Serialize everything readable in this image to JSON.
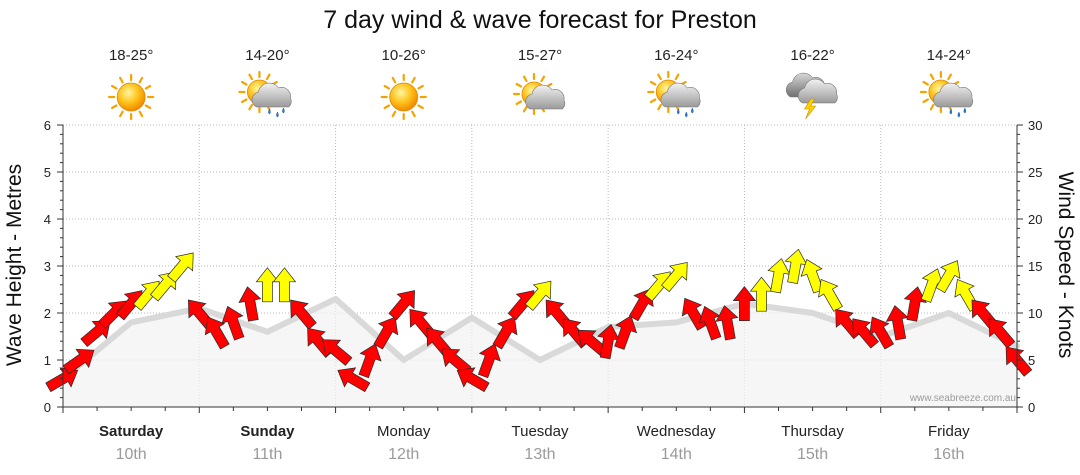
{
  "chart_data": {
    "type": "line",
    "title": "7 day wind & wave forecast for Preston",
    "ylabel_left": "Wave Height - Metres",
    "ylabel_right": "Wind Speed - Knots",
    "ylim_left": [
      0,
      6
    ],
    "ylim_right": [
      0,
      30
    ],
    "yticks_left": [
      "0",
      "1",
      "2",
      "3",
      "4",
      "5",
      "6"
    ],
    "yticks_right": [
      "0",
      "5",
      "10",
      "15",
      "20",
      "25",
      "30"
    ],
    "grid": true,
    "days": [
      {
        "day": "Saturday",
        "date": "10th",
        "temp": "18-25°",
        "icon": "sunny-icon",
        "bold": true
      },
      {
        "day": "Sunday",
        "date": "11th",
        "temp": "14-20°",
        "icon": "partly-cloudy-showers-icon",
        "bold": true
      },
      {
        "day": "Monday",
        "date": "12th",
        "temp": "10-26°",
        "icon": "sunny-icon",
        "bold": false
      },
      {
        "day": "Tuesday",
        "date": "13th",
        "temp": "15-27°",
        "icon": "partly-cloudy-icon",
        "bold": false
      },
      {
        "day": "Wednesday",
        "date": "14th",
        "temp": "16-24°",
        "icon": "partly-cloudy-showers-icon",
        "bold": false
      },
      {
        "day": "Thursday",
        "date": "15th",
        "temp": "16-22°",
        "icon": "storm-icon",
        "bold": false
      },
      {
        "day": "Friday",
        "date": "16th",
        "temp": "14-24°",
        "icon": "partly-cloudy-showers-icon",
        "bold": false
      }
    ],
    "series": [
      {
        "name": "wave",
        "color": "#d9d9d9",
        "x": [
          0,
          0.5,
          1,
          1.5,
          2,
          2.5,
          3,
          3.5,
          4,
          4.5,
          5,
          5.5,
          6,
          6.5,
          7
        ],
        "values": [
          0.6,
          1.8,
          2.1,
          1.6,
          2.3,
          1.0,
          1.9,
          1.0,
          1.7,
          1.8,
          2.2,
          2.0,
          1.5,
          2.0,
          1.3
        ]
      },
      {
        "name": "wind",
        "color_strong": "#ffff00",
        "color_weak": "#ff0000",
        "x": [
          0.0,
          0.125,
          0.25,
          0.375,
          0.5,
          0.625,
          0.75,
          0.875,
          1.0,
          1.125,
          1.25,
          1.375,
          1.5,
          1.625,
          1.75,
          1.875,
          2.0,
          2.125,
          2.25,
          2.375,
          2.5,
          2.625,
          2.75,
          2.875,
          3.0,
          3.125,
          3.25,
          3.375,
          3.5,
          3.625,
          3.75,
          3.875,
          4.0,
          4.125,
          4.25,
          4.375,
          4.5,
          4.625,
          4.75,
          4.875,
          5.0,
          5.125,
          5.25,
          5.375,
          5.5,
          5.625,
          5.75,
          5.875,
          6.0,
          6.125,
          6.25,
          6.375,
          6.5,
          6.625,
          6.75,
          6.875,
          7.0
        ],
        "values": [
          3,
          5,
          8,
          10,
          11,
          12,
          13,
          15,
          10,
          8,
          9,
          11,
          13,
          13,
          10,
          7,
          6,
          3,
          5,
          8,
          11,
          9,
          7,
          5,
          3,
          5,
          8,
          11,
          12,
          10,
          8,
          7,
          7,
          8,
          11,
          13,
          14,
          10,
          9,
          9,
          11,
          12,
          14,
          15,
          14,
          12,
          9,
          8,
          8,
          9,
          11,
          13,
          14,
          12,
          10,
          8,
          5
        ],
        "directions_deg": [
          60,
          55,
          50,
          45,
          40,
          40,
          40,
          40,
          320,
          330,
          340,
          350,
          0,
          0,
          320,
          320,
          310,
          300,
          20,
          30,
          40,
          320,
          320,
          310,
          300,
          20,
          30,
          40,
          40,
          320,
          320,
          310,
          10,
          20,
          30,
          40,
          40,
          330,
          340,
          350,
          0,
          0,
          10,
          10,
          340,
          330,
          320,
          320,
          330,
          350,
          10,
          20,
          30,
          330,
          320,
          320,
          320
        ]
      }
    ]
  },
  "watermark": "www.seabreeze.com.au"
}
